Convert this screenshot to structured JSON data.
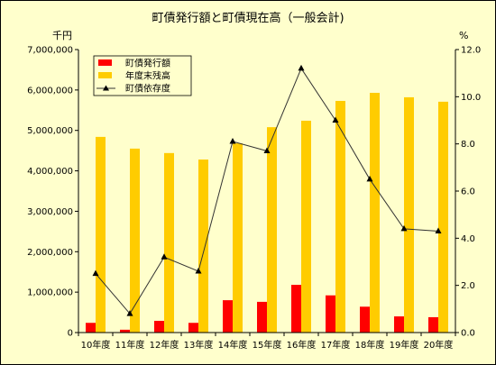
{
  "chart_data": {
    "type": "bar",
    "title": "町債発行額と町債現在高（一般会計)",
    "y_left_unit": "千円",
    "y_right_unit": "%",
    "categories": [
      "10年度",
      "11年度",
      "12年度",
      "13年度",
      "14年度",
      "15年度",
      "16年度",
      "17年度",
      "18年度",
      "19年度",
      "20年度"
    ],
    "ylim_left": [
      0,
      7000000
    ],
    "y_left_ticks": [
      0,
      1000000,
      2000000,
      3000000,
      4000000,
      5000000,
      6000000,
      7000000
    ],
    "y_left_tick_labels": [
      "0",
      "1,000,000",
      "2,000,000",
      "3,000,000",
      "4,000,000",
      "5,000,000",
      "6,000,000",
      "7,000,000"
    ],
    "ylim_right": [
      0,
      12
    ],
    "y_right_ticks": [
      0,
      2,
      4,
      6,
      8,
      10,
      12
    ],
    "y_right_tick_labels": [
      "0.0",
      "2.0",
      "4.0",
      "6.0",
      "8.0",
      "10.0",
      "12.0"
    ],
    "series": [
      {
        "name": "町債発行額",
        "type": "bar",
        "axis": "left",
        "color": "#FF0000",
        "values": [
          240000,
          70000,
          290000,
          240000,
          800000,
          760000,
          1180000,
          920000,
          640000,
          400000,
          380000
        ]
      },
      {
        "name": "年度末残高",
        "type": "bar",
        "axis": "left",
        "color": "#FFCC00",
        "values": [
          4840000,
          4550000,
          4440000,
          4280000,
          4680000,
          5080000,
          5240000,
          5730000,
          5930000,
          5820000,
          5710000
        ]
      },
      {
        "name": "町債依存度",
        "type": "line",
        "axis": "right",
        "color": "#333333",
        "marker": "triangle",
        "marker_color": "#000000",
        "values": [
          2.5,
          0.8,
          3.2,
          2.6,
          8.1,
          7.7,
          11.2,
          9.0,
          6.5,
          4.4,
          4.3
        ]
      }
    ],
    "legend_position": "top-left",
    "grid": false
  },
  "colors": {
    "background": "#FFFFCC",
    "axis": "#000000",
    "border": "#000000"
  }
}
